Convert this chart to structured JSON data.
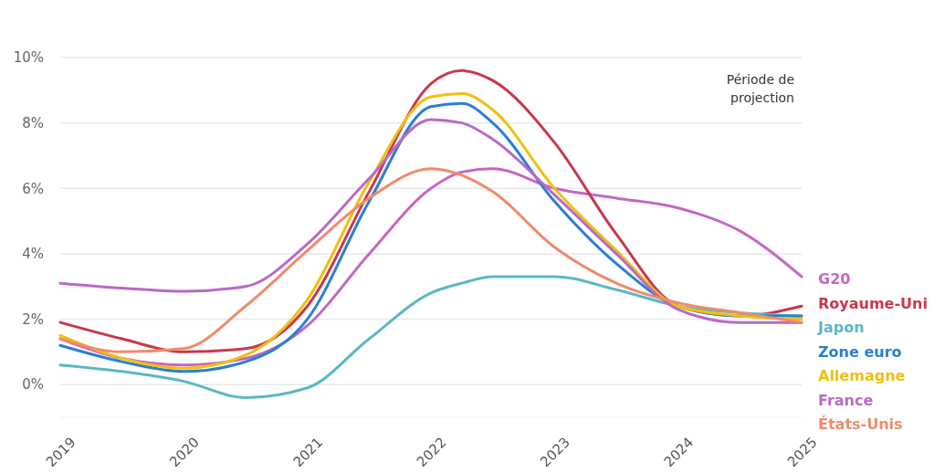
{
  "chart_data": {
    "type": "line",
    "x": [
      2019,
      2019.5,
      2020,
      2020.5,
      2021,
      2021.5,
      2022,
      2022.25,
      2022.5,
      2023,
      2023.5,
      2024,
      2024.5,
      2025
    ],
    "series": [
      {
        "name": "G20",
        "color": "#c666c2",
        "values": [
          1.4,
          0.8,
          0.6,
          0.8,
          1.8,
          4.0,
          6.0,
          6.5,
          6.6,
          6.0,
          5.7,
          5.4,
          4.7,
          3.3
        ]
      },
      {
        "name": "Royaume-Uni",
        "color": "#c8384b",
        "values": [
          1.9,
          1.4,
          1.0,
          1.1,
          2.4,
          5.9,
          9.2,
          9.6,
          9.3,
          7.4,
          4.6,
          2.4,
          2.1,
          2.4
        ]
      },
      {
        "name": "Japon",
        "color": "#5bb8c4",
        "values": [
          0.6,
          0.4,
          0.1,
          -0.4,
          -0.1,
          1.4,
          2.8,
          3.1,
          3.3,
          3.3,
          2.9,
          2.4,
          2.2,
          2.1
        ]
      },
      {
        "name": "Zone euro",
        "color": "#2a7fd0",
        "values": [
          1.2,
          0.7,
          0.4,
          0.7,
          2.0,
          5.6,
          8.5,
          8.6,
          8.0,
          5.6,
          3.7,
          2.4,
          2.1,
          2.1
        ]
      },
      {
        "name": "Allemagne",
        "color": "#f0c010",
        "values": [
          1.5,
          0.8,
          0.5,
          0.9,
          2.6,
          6.2,
          8.8,
          8.9,
          8.4,
          6.0,
          4.1,
          2.4,
          2.1,
          2.0
        ]
      },
      {
        "name": "France",
        "color": "#b86ac6",
        "values": [
          3.1,
          2.95,
          2.85,
          3.0,
          4.3,
          6.3,
          8.1,
          8.0,
          7.5,
          5.8,
          4.0,
          2.3,
          1.9,
          1.9
        ]
      },
      {
        "name": "États-Unis",
        "color": "#f08a6a",
        "values": [
          1.4,
          1.0,
          1.1,
          2.4,
          4.1,
          5.7,
          6.6,
          6.4,
          5.9,
          4.2,
          3.1,
          2.5,
          2.2,
          1.9
        ]
      }
    ],
    "xlim": [
      2019,
      2025
    ],
    "xticks": [
      2019,
      2020,
      2021,
      2022,
      2023,
      2024,
      2025
    ],
    "ylim": [
      -1,
      10
    ],
    "yticks": [
      {
        "value": 0,
        "label": "0%"
      },
      {
        "value": 2,
        "label": "2%"
      },
      {
        "value": 4,
        "label": "4%"
      },
      {
        "value": 6,
        "label": "6%"
      },
      {
        "value": 8,
        "label": "8%"
      },
      {
        "value": 10,
        "label": "10%"
      }
    ],
    "grid": "y",
    "legend": "right",
    "marker": "none",
    "line_style": "solid",
    "annotations": [
      "Période de\nprojection"
    ]
  }
}
